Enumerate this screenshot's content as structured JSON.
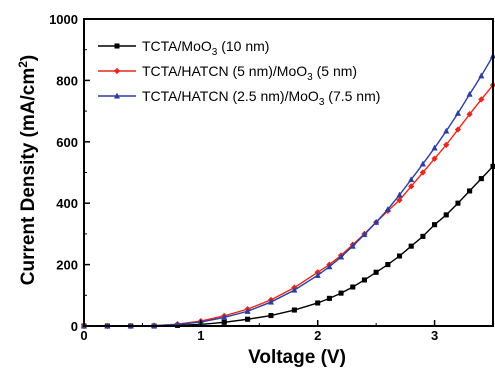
{
  "chart_data": {
    "type": "line",
    "title": "",
    "xlabel": "Voltage (V)",
    "ylabel": "Current Density (mA/cm2)",
    "xlim": [
      0,
      3.5
    ],
    "ylim": [
      0,
      1000
    ],
    "xticks": [
      0,
      1,
      2,
      3
    ],
    "yticks": [
      0,
      200,
      400,
      600,
      800,
      1000
    ],
    "grid": false,
    "legend_position": "top-left",
    "series": [
      {
        "name": "TCTA/MoO3 (10 nm)",
        "color": "#000000",
        "marker": "square",
        "x": [
          0,
          0.2,
          0.4,
          0.6,
          0.8,
          1.0,
          1.2,
          1.4,
          1.6,
          1.8,
          2.0,
          2.1,
          2.2,
          2.3,
          2.4,
          2.5,
          2.6,
          2.7,
          2.8,
          2.9,
          3.0,
          3.1,
          3.2,
          3.3,
          3.4,
          3.5
        ],
        "y": [
          0,
          0,
          0,
          0,
          2,
          5,
          12,
          22,
          34,
          52,
          75,
          90,
          107,
          127,
          150,
          175,
          200,
          228,
          260,
          292,
          330,
          362,
          400,
          440,
          480,
          520
        ]
      },
      {
        "name": "TCTA/HATCN (5 nm)/MoO3 (5 nm)",
        "color": "#e8271e",
        "marker": "diamond",
        "x": [
          0,
          0.2,
          0.4,
          0.6,
          0.8,
          1.0,
          1.2,
          1.4,
          1.6,
          1.8,
          2.0,
          2.1,
          2.2,
          2.3,
          2.4,
          2.5,
          2.6,
          2.7,
          2.8,
          2.9,
          3.0,
          3.1,
          3.2,
          3.3,
          3.4,
          3.5
        ],
        "y": [
          0,
          0,
          0,
          1,
          6,
          16,
          33,
          55,
          85,
          125,
          175,
          200,
          230,
          265,
          300,
          338,
          375,
          410,
          455,
          500,
          545,
          590,
          640,
          690,
          738,
          785
        ]
      },
      {
        "name": "TCTA/HATCN (2.5 nm)/MoO3 (7.5 nm)",
        "color": "#2b3fa0",
        "marker": "triangle",
        "x": [
          0,
          0.2,
          0.4,
          0.6,
          0.8,
          1.0,
          1.2,
          1.4,
          1.6,
          1.8,
          2.0,
          2.1,
          2.2,
          2.3,
          2.4,
          2.5,
          2.6,
          2.7,
          2.8,
          2.9,
          3.0,
          3.1,
          3.2,
          3.3,
          3.4,
          3.5
        ],
        "y": [
          0,
          0,
          0,
          1,
          5,
          13,
          28,
          48,
          78,
          117,
          165,
          193,
          225,
          260,
          298,
          338,
          380,
          427,
          477,
          528,
          580,
          635,
          693,
          755,
          815,
          880
        ]
      }
    ]
  }
}
